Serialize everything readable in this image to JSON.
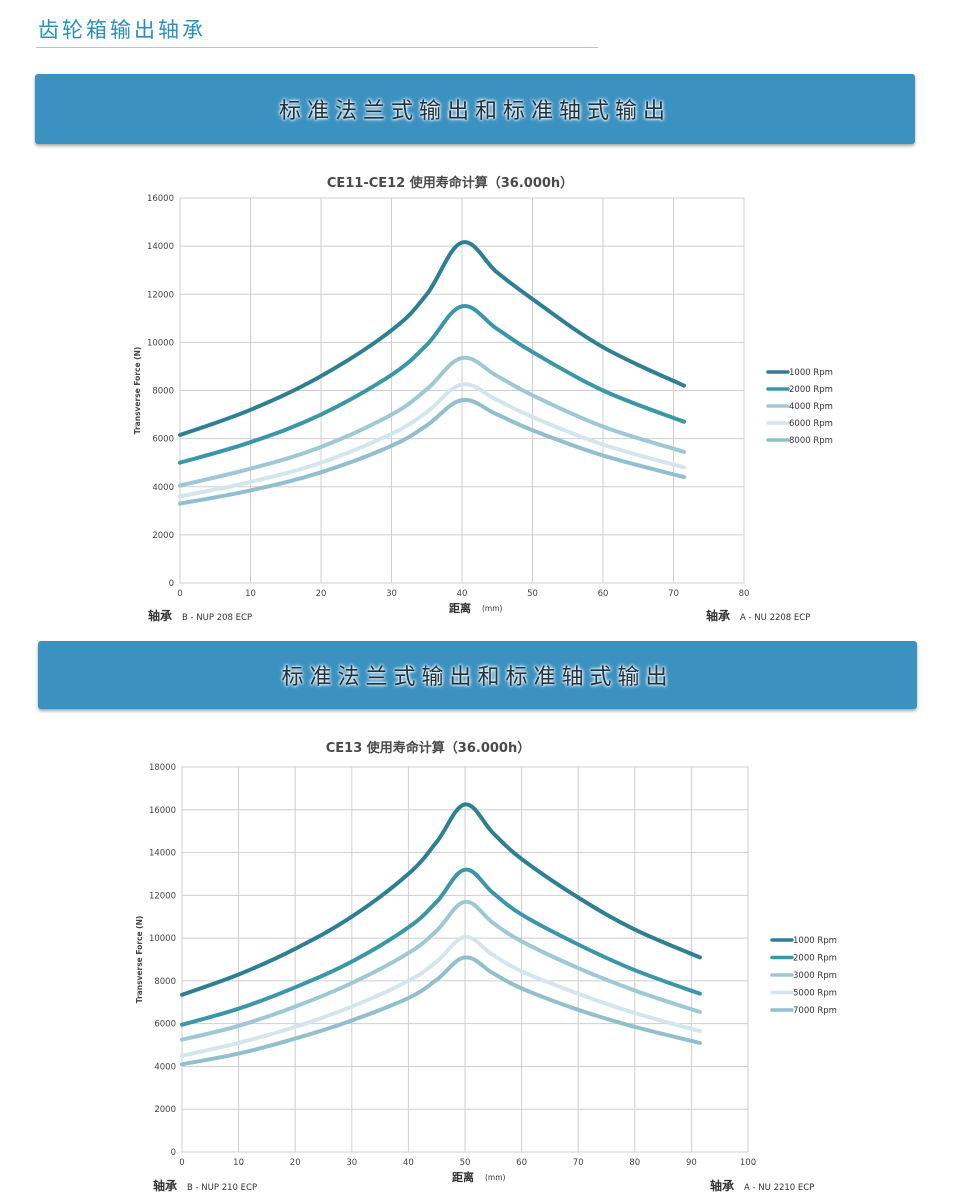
{
  "page_title": "齿轮箱输出轴承",
  "banner_1": "标准法兰式输出和标准轴式输出",
  "banner_2": "标准法兰式输出和标准轴式输出",
  "colors": {
    "accent": "#3b92c1",
    "title": "#2a8fc0",
    "series": [
      "#2f7f94",
      "#3a97aa",
      "#9ec8d5",
      "#d3e6ed",
      "#91bfcd"
    ]
  },
  "chart_data": [
    {
      "type": "line",
      "title": "CE11-CE12    使用寿命计算（36.000h）",
      "xlabel": "距离",
      "xunit": "(mm)",
      "ylabel": "Transverse Force (N)",
      "xlim": [
        0,
        80
      ],
      "ylim": [
        0,
        16000
      ],
      "xticks": [
        0,
        10,
        20,
        30,
        40,
        50,
        60,
        70,
        80
      ],
      "yticks": [
        0,
        2000,
        4000,
        6000,
        8000,
        10000,
        12000,
        14000,
        16000
      ],
      "grid": true,
      "legend_position": "right",
      "bearing_left": {
        "label": "轴承",
        "value": "B - NUP 208 ECP"
      },
      "bearing_right": {
        "label": "轴承",
        "value": "A - NU 2208 ECP"
      },
      "series": [
        {
          "name": "1000 Rpm",
          "x": [
            0,
            10,
            20,
            30,
            35,
            40,
            45,
            50,
            60,
            71.5
          ],
          "y": [
            6150,
            7200,
            8600,
            10500,
            12000,
            14150,
            12900,
            11800,
            9800,
            8200
          ]
        },
        {
          "name": "2000 Rpm",
          "x": [
            0,
            10,
            20,
            30,
            35,
            40,
            45,
            50,
            60,
            71.5
          ],
          "y": [
            5000,
            5850,
            7000,
            8650,
            9900,
            11500,
            10550,
            9600,
            8000,
            6700
          ]
        },
        {
          "name": "4000 Rpm",
          "x": [
            0,
            10,
            20,
            30,
            35,
            40,
            45,
            50,
            60,
            71.5
          ],
          "y": [
            4050,
            4750,
            5650,
            7000,
            8050,
            9350,
            8600,
            7800,
            6500,
            5450
          ]
        },
        {
          "name": "6000 Rpm",
          "x": [
            0,
            10,
            20,
            30,
            35,
            40,
            45,
            50,
            60,
            71.5
          ],
          "y": [
            3600,
            4200,
            5000,
            6200,
            7100,
            8250,
            7600,
            6900,
            5750,
            4800
          ]
        },
        {
          "name": "8000 Rpm",
          "x": [
            0,
            10,
            20,
            30,
            35,
            40,
            45,
            50,
            60,
            71.5
          ],
          "y": [
            3300,
            3850,
            4600,
            5700,
            6550,
            7600,
            7000,
            6350,
            5300,
            4400
          ]
        }
      ]
    },
    {
      "type": "line",
      "title": "CE13    使用寿命计算（36.000h）",
      "xlabel": "距离",
      "xunit": "(mm)",
      "ylabel": "Transverse Force (N)",
      "xlim": [
        0,
        100
      ],
      "ylim": [
        0,
        18000
      ],
      "xticks": [
        0,
        10,
        20,
        30,
        40,
        50,
        60,
        70,
        80,
        90,
        100
      ],
      "yticks": [
        0,
        2000,
        4000,
        6000,
        8000,
        10000,
        12000,
        14000,
        16000,
        18000
      ],
      "grid": true,
      "legend_position": "right",
      "bearing_left": {
        "label": "轴承",
        "value": "B - NUP 210 ECP"
      },
      "bearing_right": {
        "label": "轴承",
        "value": "A - NU 2210 ECP"
      },
      "series": [
        {
          "name": "1000 Rpm",
          "x": [
            0,
            10,
            20,
            30,
            40,
            45,
            50,
            55,
            60,
            70,
            80,
            91.5
          ],
          "y": [
            7350,
            8300,
            9500,
            11000,
            13000,
            14500,
            16250,
            14900,
            13700,
            11900,
            10400,
            9100
          ]
        },
        {
          "name": "2000 Rpm",
          "x": [
            0,
            10,
            20,
            30,
            40,
            45,
            50,
            55,
            60,
            70,
            80,
            91.5
          ],
          "y": [
            5950,
            6700,
            7700,
            8900,
            10500,
            11700,
            13200,
            12100,
            11100,
            9700,
            8500,
            7400
          ]
        },
        {
          "name": "3000 Rpm",
          "x": [
            0,
            10,
            20,
            30,
            40,
            45,
            50,
            55,
            60,
            70,
            80,
            91.5
          ],
          "y": [
            5250,
            5900,
            6800,
            7900,
            9300,
            10350,
            11700,
            10700,
            9850,
            8600,
            7550,
            6550
          ]
        },
        {
          "name": "5000 Rpm",
          "x": [
            0,
            10,
            20,
            30,
            40,
            45,
            50,
            55,
            60,
            70,
            80,
            91.5
          ],
          "y": [
            4500,
            5100,
            5850,
            6800,
            8000,
            8900,
            10050,
            9200,
            8450,
            7400,
            6500,
            5650
          ]
        },
        {
          "name": "7000 Rpm",
          "x": [
            0,
            10,
            20,
            30,
            40,
            45,
            50,
            55,
            60,
            70,
            80,
            91.5
          ],
          "y": [
            4100,
            4600,
            5300,
            6150,
            7200,
            8050,
            9100,
            8350,
            7650,
            6650,
            5850,
            5100
          ]
        }
      ]
    }
  ]
}
